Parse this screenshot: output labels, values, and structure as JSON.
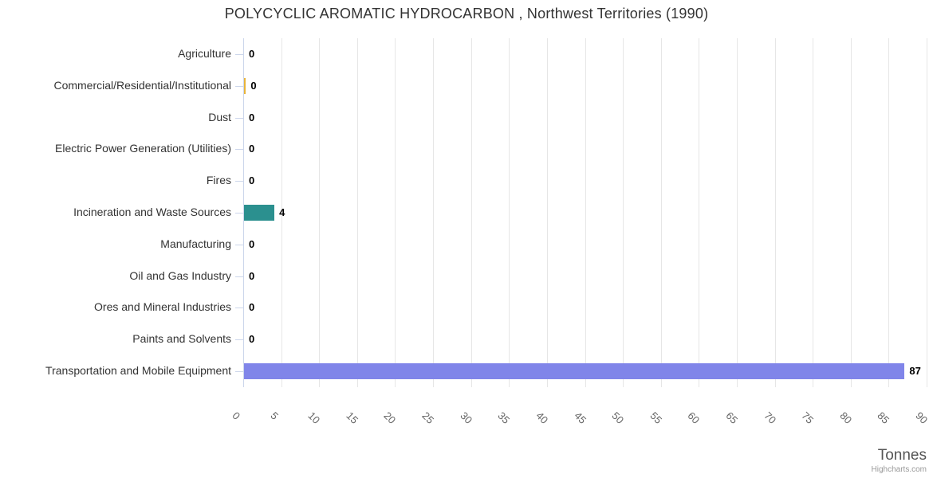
{
  "title": "POLYCYCLIC AROMATIC HYDROCARBON , Northwest Territories (1990)",
  "credit": "Highcharts.com",
  "colors": {
    "axis_line": "#ccd6eb",
    "gridline": "#e6e6e6",
    "category_text": "#333333",
    "tick_text": "#666666",
    "gold_bar": "#e8b43a",
    "teal_bar": "#2b908f",
    "purple_bar": "#8085e9"
  },
  "chart_data": {
    "type": "bar",
    "orientation": "horizontal",
    "title": "POLYCYCLIC AROMATIC HYDROCARBON , Northwest Territories (1990)",
    "categories": [
      "Agriculture",
      "Commercial/Residential/Institutional",
      "Dust",
      "Electric Power Generation (Utilities)",
      "Fires",
      "Incineration and Waste Sources",
      "Manufacturing",
      "Oil and Gas Industry",
      "Ores and Mineral Industries",
      "Paints and Solvents",
      "Transportation and Mobile Equipment"
    ],
    "values": [
      0,
      0,
      0,
      0,
      0,
      4,
      0,
      0,
      0,
      0,
      87
    ],
    "data_labels": [
      "0",
      "0",
      "0",
      "0",
      "0",
      "4",
      "0",
      "0",
      "0",
      "0",
      "87"
    ],
    "draw_lengths": [
      0,
      0.25,
      0,
      0,
      0,
      4,
      0,
      0,
      0,
      0,
      87
    ],
    "bar_colors": [
      null,
      "#e8b43a",
      null,
      null,
      null,
      "#2b908f",
      null,
      null,
      null,
      null,
      "#8085e9"
    ],
    "xlabel": "Tonnes",
    "xlim": [
      0,
      90
    ],
    "xticks": [
      0,
      5,
      10,
      15,
      20,
      25,
      30,
      35,
      40,
      45,
      50,
      55,
      60,
      65,
      70,
      75,
      80,
      85,
      90
    ],
    "grid": true,
    "legend": false
  }
}
